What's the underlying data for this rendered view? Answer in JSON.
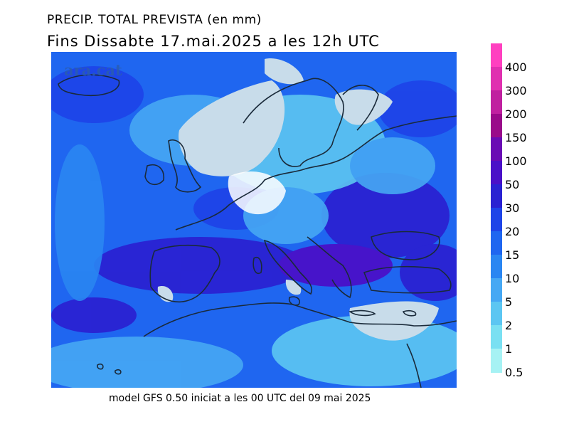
{
  "title_line1": "PRECIP. TOTAL PREVISTA (en mm)",
  "title_line2": "Fins Dissabte  17.mai.2025 a les 12h UTC",
  "watermark": "ara.cat",
  "footer": "model GFS 0.50 iniciat a les 00 UTC del 09 mai 2025",
  "legend": {
    "unit": "mm",
    "levels": [
      "400",
      "300",
      "200",
      "150",
      "100",
      "50",
      "30",
      "20",
      "15",
      "10",
      "5",
      "2",
      "1",
      "0.5"
    ],
    "colors": [
      "#ff40c0",
      "#e030b0",
      "#c020a0",
      "#9a0a8a",
      "#6a0ab4",
      "#4a10c8",
      "#2a22d2",
      "#1e44e8",
      "#1f66f0",
      "#2a86f2",
      "#46a8f4",
      "#5cc6f2",
      "#7ae0f2",
      "#a6f2f4"
    ]
  },
  "map": {
    "region": "Europe and Mediterranean",
    "background_color": "#1e5ff0",
    "dry_land_color": "#c8dcea"
  }
}
